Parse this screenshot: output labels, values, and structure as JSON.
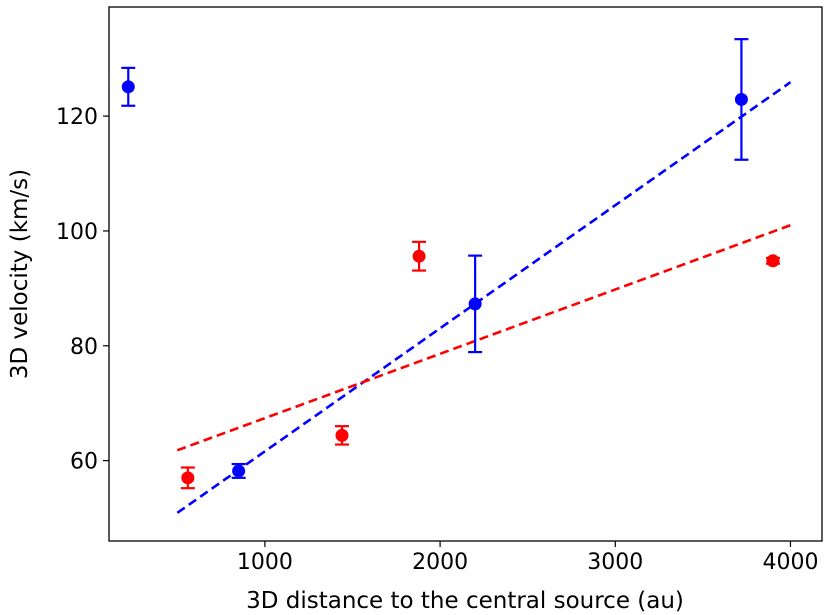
{
  "chart_data": {
    "type": "scatter",
    "title": "",
    "xlabel": "3D distance to the central source (au)",
    "ylabel": "3D velocity (km/s)",
    "xlim": [
      110,
      4180
    ],
    "ylim": [
      46,
      139
    ],
    "x_ticks": [
      1000,
      2000,
      3000,
      4000
    ],
    "y_ticks": [
      60,
      80,
      100,
      120
    ],
    "x_tick_labels": [
      "1000",
      "2000",
      "3000",
      "4000"
    ],
    "y_tick_labels": [
      "60",
      "80",
      "100",
      "120"
    ],
    "grid": false,
    "legend": "none",
    "series": [
      {
        "color": "#0000ff",
        "points": [
          {
            "x": 220,
            "y": 125.1,
            "yerr": 3.3
          },
          {
            "x": 850,
            "y": 58.2,
            "yerr": 1.2
          },
          {
            "x": 2200,
            "y": 87.3,
            "yerr": 8.4
          },
          {
            "x": 3720,
            "y": 122.9,
            "yerr": 10.5
          }
        ],
        "fit": {
          "x": [
            500,
            4000
          ],
          "y": [
            50.9,
            125.9
          ]
        }
      },
      {
        "color": "#ff0000",
        "points": [
          {
            "x": 560,
            "y": 57.0,
            "yerr": 1.8
          },
          {
            "x": 1440,
            "y": 64.4,
            "yerr": 1.6
          },
          {
            "x": 1880,
            "y": 95.6,
            "yerr": 2.5
          },
          {
            "x": 3900,
            "y": 94.8,
            "yerr": 0.5
          }
        ],
        "fit": {
          "x": [
            500,
            4000
          ],
          "y": [
            61.8,
            101.0
          ]
        }
      }
    ]
  }
}
